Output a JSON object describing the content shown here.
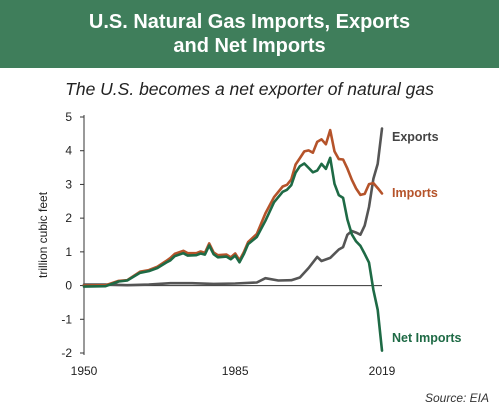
{
  "header": {
    "title_line1": "U.S. Natural Gas Imports, Exports",
    "title_line2": "and Net Imports"
  },
  "subtitle": "The U.S. becomes a net exporter of natural gas",
  "source": "Source: EIA",
  "colors": {
    "banner": "#3f7e5b",
    "exports": "#555555",
    "imports": "#b5532a",
    "net_imports": "#1e6a45",
    "axis": "#333333"
  },
  "chart_data": {
    "type": "line",
    "title": "",
    "xlabel": "",
    "ylabel": "trillion cubic feet",
    "xlim": [
      1950,
      2019
    ],
    "ylim": [
      -2,
      5
    ],
    "yticks": [
      5,
      4,
      3,
      2,
      1,
      0,
      -1,
      -2
    ],
    "yticklabels": [
      "5",
      "4",
      "3",
      "2",
      "1",
      "0",
      "-1",
      "-2"
    ],
    "xticks": [
      1950,
      1985,
      2019
    ],
    "xticklabels": [
      "1950",
      "1985",
      "2019"
    ],
    "grid": false,
    "legend": "inline labels at line ends",
    "series": [
      {
        "name": "Exports",
        "color": "#555555",
        "x": [
          1950,
          1955,
          1960,
          1965,
          1970,
          1975,
          1980,
          1985,
          1990,
          1992,
          1995,
          1998,
          2000,
          2002,
          2004,
          2005,
          2007,
          2009,
          2010,
          2011,
          2012,
          2013,
          2014,
          2015,
          2016,
          2017,
          2018,
          2019
        ],
        "y": [
          0.03,
          0.03,
          0.01,
          0.03,
          0.07,
          0.07,
          0.05,
          0.06,
          0.09,
          0.22,
          0.15,
          0.16,
          0.24,
          0.52,
          0.85,
          0.73,
          0.82,
          1.07,
          1.14,
          1.51,
          1.62,
          1.57,
          1.51,
          1.78,
          2.33,
          3.17,
          3.61,
          4.66
        ]
      },
      {
        "name": "Imports",
        "color": "#b5532a",
        "x": [
          1950,
          1955,
          1958,
          1960,
          1963,
          1965,
          1967,
          1969,
          1970,
          1971,
          1973,
          1974,
          1976,
          1977,
          1978,
          1979,
          1980,
          1981,
          1983,
          1984,
          1985,
          1986,
          1987,
          1988,
          1990,
          1992,
          1994,
          1996,
          1997,
          1998,
          1999,
          2000,
          2001,
          2002,
          2003,
          2004,
          2005,
          2006,
          2007,
          2008,
          2009,
          2010,
          2011,
          2012,
          2013,
          2014,
          2015,
          2016,
          2017,
          2018,
          2019
        ],
        "y": [
          0.0,
          0.01,
          0.14,
          0.16,
          0.41,
          0.46,
          0.56,
          0.73,
          0.82,
          0.94,
          1.03,
          0.96,
          0.96,
          1.01,
          0.97,
          1.25,
          0.98,
          0.9,
          0.92,
          0.84,
          0.95,
          0.75,
          0.99,
          1.29,
          1.53,
          2.14,
          2.62,
          2.94,
          2.99,
          3.15,
          3.59,
          3.78,
          3.98,
          4.01,
          3.94,
          4.26,
          4.34,
          4.19,
          4.61,
          3.98,
          3.75,
          3.74,
          3.47,
          3.14,
          2.88,
          2.69,
          2.72,
          3.01,
          3.04,
          2.89,
          2.73
        ]
      },
      {
        "name": "Net Imports",
        "color": "#1e6a45",
        "x": [
          1950,
          1955,
          1958,
          1960,
          1963,
          1965,
          1967,
          1969,
          1970,
          1971,
          1973,
          1974,
          1976,
          1977,
          1978,
          1979,
          1980,
          1981,
          1983,
          1984,
          1985,
          1986,
          1987,
          1988,
          1990,
          1992,
          1994,
          1996,
          1997,
          1998,
          1999,
          2000,
          2001,
          2002,
          2003,
          2004,
          2005,
          2006,
          2007,
          2008,
          2009,
          2010,
          2011,
          2012,
          2013,
          2014,
          2015,
          2016,
          2017,
          2018,
          2019
        ],
        "y": [
          -0.03,
          -0.02,
          0.12,
          0.15,
          0.38,
          0.43,
          0.52,
          0.68,
          0.75,
          0.87,
          0.96,
          0.89,
          0.9,
          0.95,
          0.92,
          1.19,
          0.93,
          0.84,
          0.86,
          0.78,
          0.89,
          0.69,
          0.93,
          1.23,
          1.44,
          1.92,
          2.47,
          2.78,
          2.84,
          2.98,
          3.35,
          3.54,
          3.62,
          3.49,
          3.36,
          3.41,
          3.61,
          3.46,
          3.79,
          3.02,
          2.68,
          2.6,
          1.96,
          1.52,
          1.31,
          1.18,
          0.94,
          0.68,
          -0.13,
          -0.72,
          -1.93
        ]
      }
    ]
  }
}
